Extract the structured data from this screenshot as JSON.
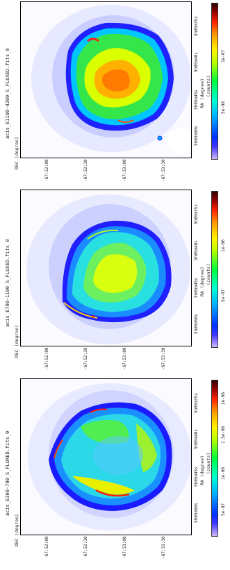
{
  "panels": [
    {
      "title": "acis_E1100-4200_S_FLUXED.fits_0",
      "dec_label": "DEC (degree)",
      "ra_label": "RA (degree)",
      "units": "(counts)",
      "dec_ticks": [
        "-67:52:00",
        "-67:52:30",
        "-67:53:00",
        "-67:53:30"
      ],
      "ra_ticks": [
        "5h05m50s",
        "5h05m45s",
        "5h05m40s",
        "5h05m35s"
      ],
      "cbar_ticks": [
        "5e-08",
        "1e-07"
      ]
    },
    {
      "title": "acis_E700-1100_S_FLUXED.fits_0",
      "dec_label": "DEC (degree)",
      "ra_label": "RA (degree)",
      "units": "(counts)",
      "dec_ticks": [
        "-67:52:00",
        "-67:52:30",
        "-67:53:00",
        "-67:53:30"
      ],
      "ra_ticks": [
        "5h05m50s",
        "5h05m45s",
        "5h05m40s",
        "5h05m35s"
      ],
      "cbar_ticks": [
        "5e-07",
        "1e-06"
      ]
    },
    {
      "title": "acis_E300-700_S_FLUXED.fits_0",
      "dec_label": "DEC (degree)",
      "ra_label": "RA (degree)",
      "units": "(counts)",
      "dec_ticks": [
        "-67:52:00",
        "-67:52:30",
        "-67:53:00",
        "-67:53:30"
      ],
      "ra_ticks": [
        "5h05m50s",
        "5h05m45s",
        "5h05m40s",
        "5h05m35s"
      ],
      "cbar_ticks": [
        "5e-07",
        "1e-06",
        "1.5e-06",
        "2e-06"
      ]
    }
  ],
  "colors": {
    "halo": "#dfe3ff",
    "rim": "#1020ff",
    "interior_cyan": "#22d3f0",
    "interior_green": "#3fef40",
    "interior_yellow": "#f2ff00",
    "interior_orange": "#ff9a00",
    "hot": "#ff1010"
  }
}
